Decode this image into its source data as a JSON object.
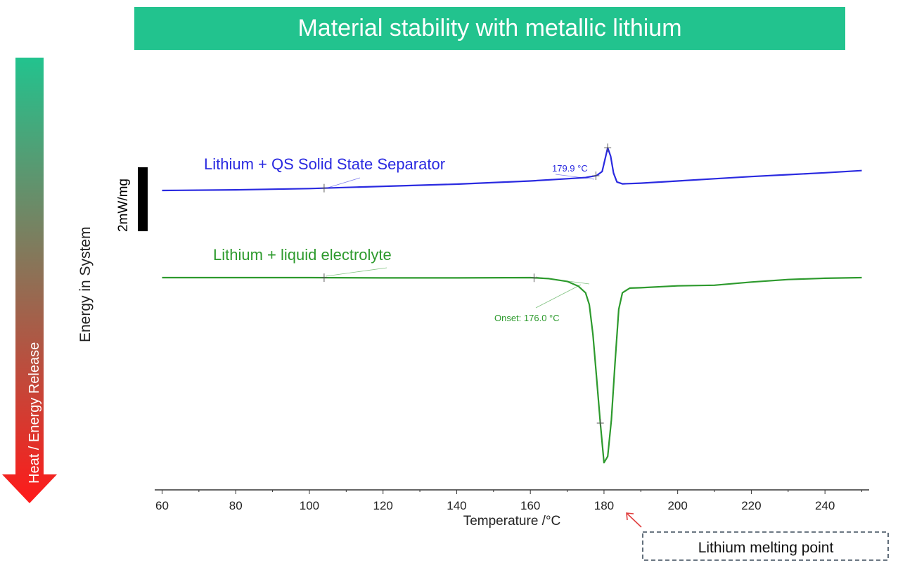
{
  "title": "Material stability with metallic lithium",
  "side_arrow_label": "Heat / Energy Release",
  "yaxis_label": "Energy in System",
  "scale_bar_label": "2mW/mg",
  "melting_point_label": "Lithium melting point",
  "colors": {
    "banner": "#22c38e",
    "arrow_top": "#22c38e",
    "arrow_bottom": "#ff1a1a",
    "series_separator": "#2a2ae0",
    "series_liquid": "#2d9a2d",
    "melting_arrow": "#e04040"
  },
  "chart_data": {
    "type": "line",
    "xlabel": "Temperature /°C",
    "ylabel": "",
    "xlim": [
      58,
      252
    ],
    "xticks": [
      60,
      80,
      100,
      120,
      140,
      160,
      180,
      200,
      220,
      240
    ],
    "grid": false,
    "series": [
      {
        "name": "Lithium + QS Solid State Separator",
        "annotation": "179.9 °C",
        "x": [
          60,
          80,
          100,
          120,
          140,
          160,
          170,
          175,
          178,
          179.5,
          180.3,
          181,
          181.8,
          182.6,
          183.5,
          185,
          190,
          200,
          210,
          220,
          230,
          240,
          250
        ],
        "y": [
          0,
          0.02,
          0.06,
          0.13,
          0.2,
          0.3,
          0.37,
          0.41,
          0.47,
          0.6,
          1.0,
          1.35,
          1.08,
          0.55,
          0.27,
          0.21,
          0.23,
          0.3,
          0.37,
          0.44,
          0.5,
          0.56,
          0.63
        ]
      },
      {
        "name": "Lithium + liquid electrolyte",
        "annotation": "Onset: 176.0 °C",
        "x": [
          60,
          80,
          100,
          120,
          140,
          160,
          165,
          170,
          173,
          175,
          176,
          177,
          178,
          179,
          180,
          181,
          182,
          183,
          184,
          185,
          187,
          190,
          200,
          210,
          220,
          230,
          240,
          250
        ],
        "y": [
          0,
          0,
          0,
          -0.01,
          -0.01,
          0,
          -0.03,
          -0.12,
          -0.27,
          -0.48,
          -0.85,
          -1.8,
          -3.2,
          -4.6,
          -5.85,
          -5.65,
          -4.5,
          -2.7,
          -1.0,
          -0.48,
          -0.33,
          -0.32,
          -0.26,
          -0.24,
          -0.14,
          -0.06,
          -0.02,
          0
        ]
      }
    ]
  }
}
